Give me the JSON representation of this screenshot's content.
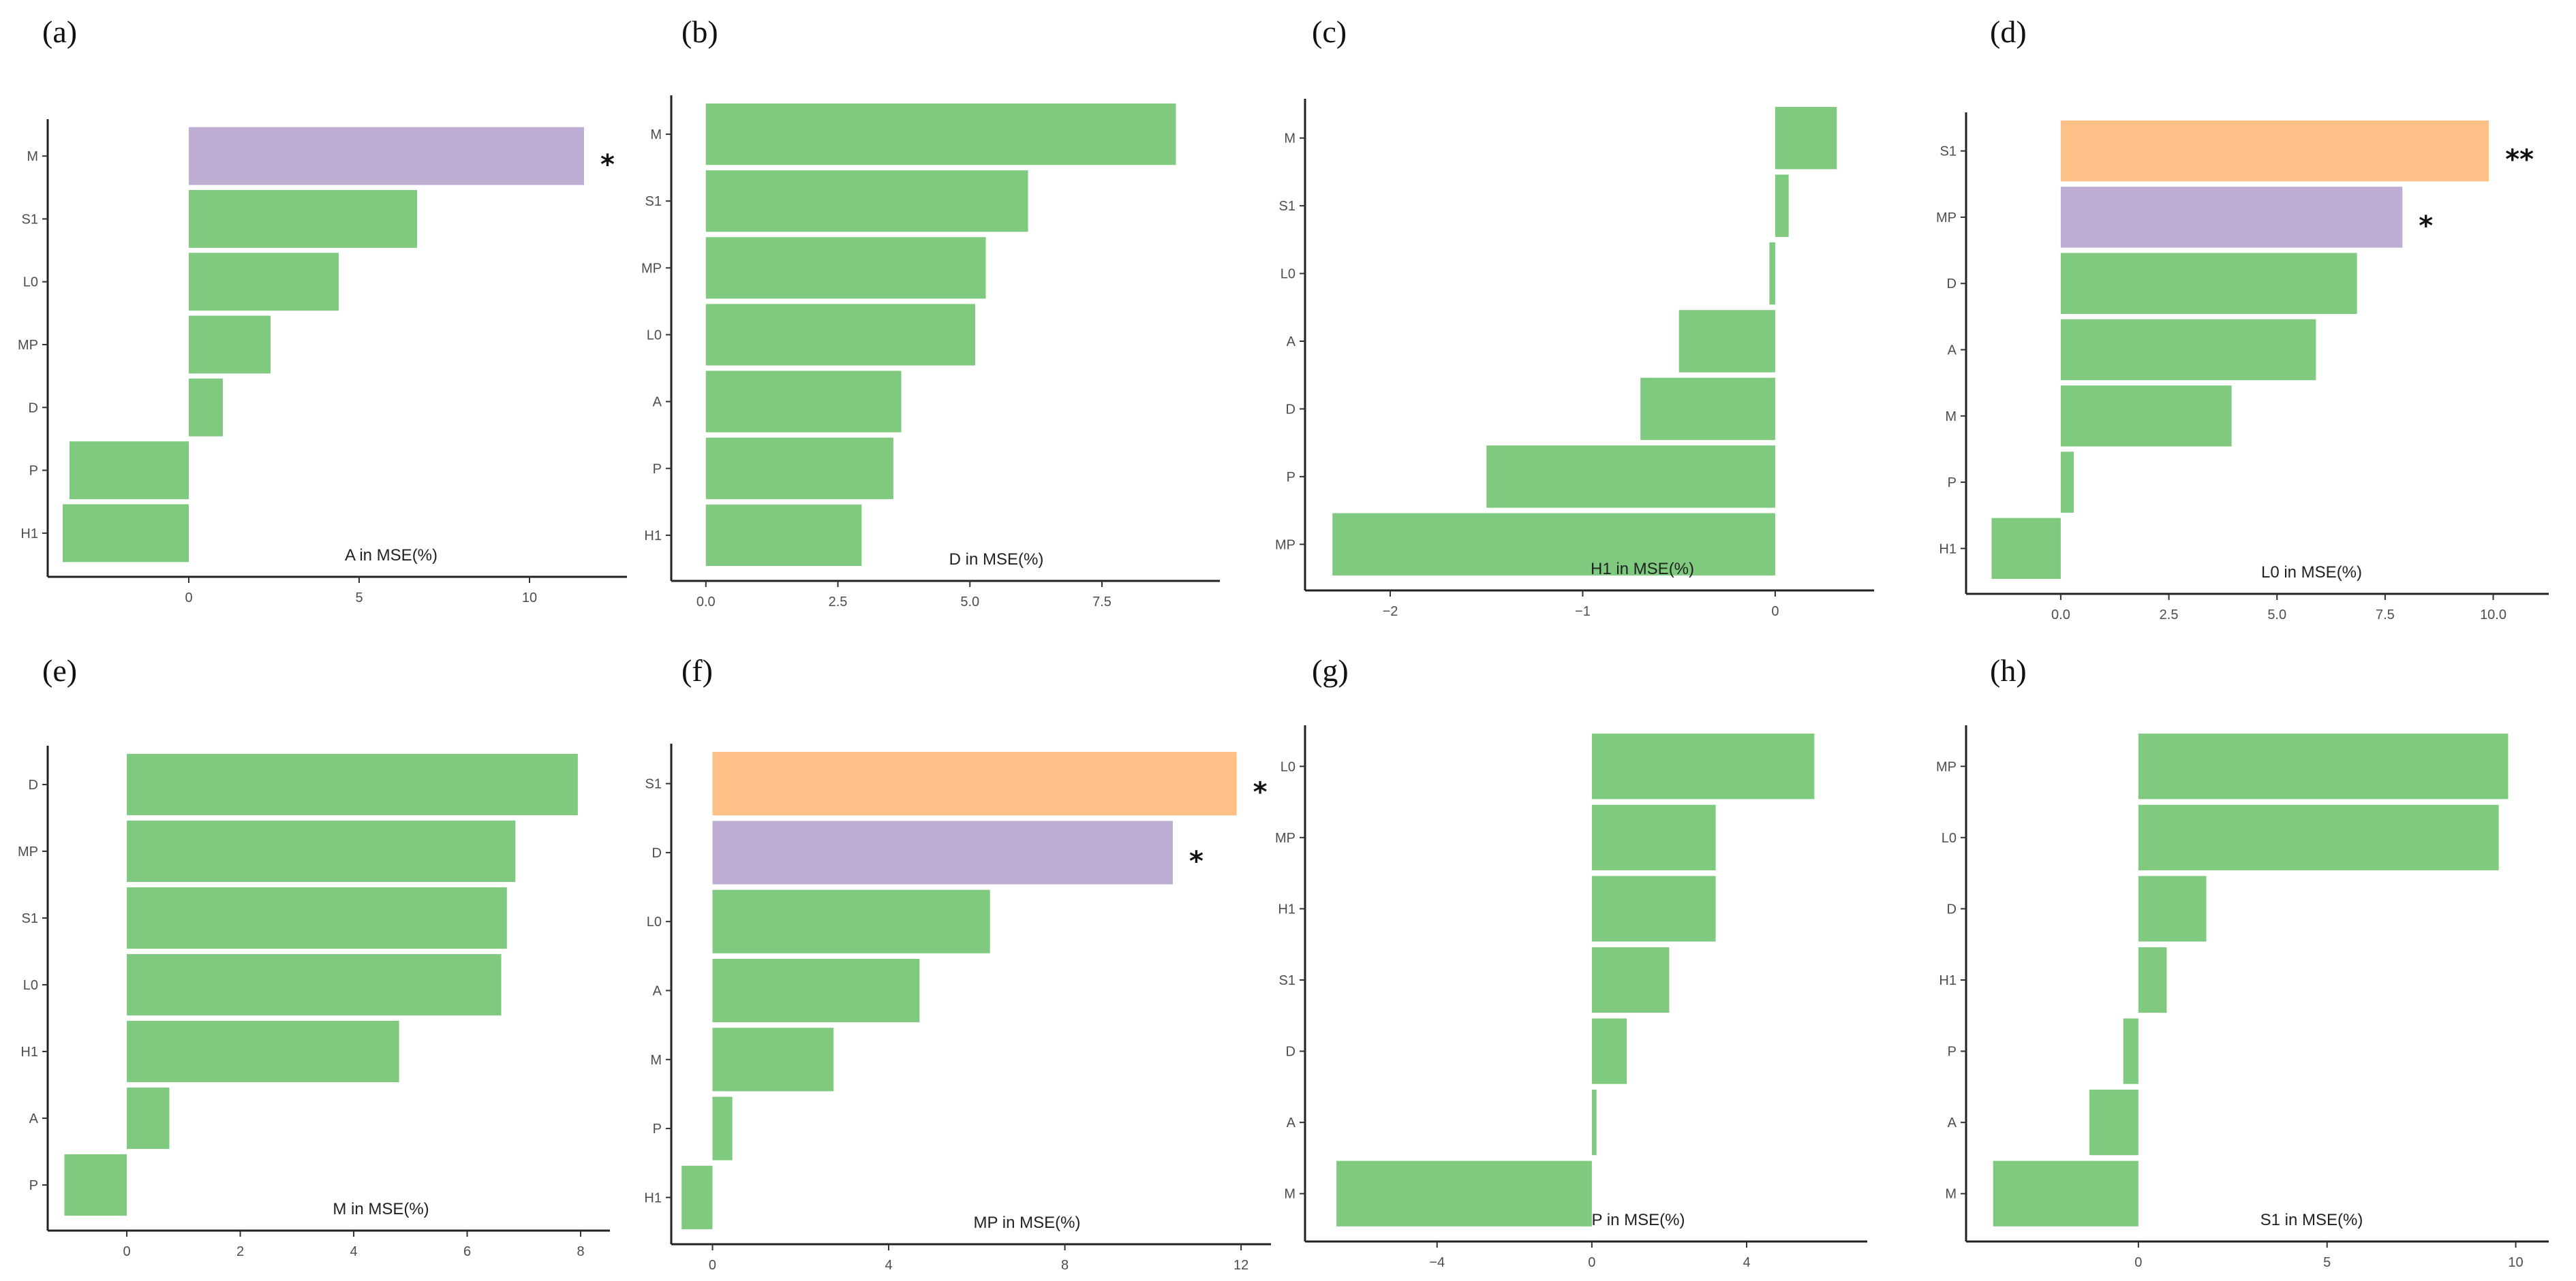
{
  "colors": {
    "default": "#7fca7f",
    "highlight_orange": "#fdc086",
    "highlight_purple": "#beaed4"
  },
  "chart_data": [
    {
      "panel": "(a)",
      "type": "bar",
      "orientation": "horizontal",
      "xlabel": "A in MSE(%)",
      "categories": [
        "M",
        "S1",
        "L0",
        "MP",
        "D",
        "P",
        "H1"
      ],
      "values": [
        11.6,
        6.7,
        4.4,
        2.4,
        1.0,
        -3.5,
        -3.7
      ],
      "bar_colors": [
        "purple",
        "green",
        "green",
        "green",
        "green",
        "green",
        "green"
      ],
      "annotations": [
        "*",
        "",
        "",
        "",
        "",
        "",
        ""
      ],
      "xticks": [
        0,
        5,
        10
      ],
      "xlim": [
        -3.9,
        12.5
      ]
    },
    {
      "panel": "(b)",
      "type": "bar",
      "orientation": "horizontal",
      "xlabel": "D in MSE(%)",
      "categories": [
        "M",
        "S1",
        "MP",
        "L0",
        "A",
        "P",
        "H1"
      ],
      "values": [
        8.9,
        6.1,
        5.3,
        5.1,
        3.7,
        3.55,
        2.95
      ],
      "bar_colors": [
        "green",
        "green",
        "green",
        "green",
        "green",
        "green",
        "green"
      ],
      "annotations": [
        "",
        "",
        "",
        "",
        "",
        "",
        ""
      ],
      "xticks": [
        0.0,
        2.5,
        5.0,
        7.5
      ],
      "xticklabels": [
        "0.0",
        "2.5",
        "5.0",
        "7.5"
      ],
      "xlim": [
        -0.5,
        9.5
      ]
    },
    {
      "panel": "(c)",
      "type": "bar",
      "orientation": "horizontal",
      "xlabel": "H1 in MSE(%)",
      "categories": [
        "M",
        "S1",
        "L0",
        "A",
        "D",
        "P",
        "MP"
      ],
      "values": [
        0.32,
        0.07,
        -0.03,
        -0.5,
        -0.7,
        -1.5,
        -2.3
      ],
      "bar_colors": [
        "green",
        "green",
        "green",
        "green",
        "green",
        "green",
        "green"
      ],
      "annotations": [
        "",
        "",
        "",
        "",
        "",
        "",
        ""
      ],
      "xticks": [
        -2,
        -1,
        0
      ],
      "xticklabels": [
        "−2",
        "−1",
        "0"
      ],
      "xlim": [
        -2.4,
        0.45
      ]
    },
    {
      "panel": "(d)",
      "type": "bar",
      "orientation": "horizontal",
      "xlabel": "L0 in MSE(%)",
      "categories": [
        "S1",
        "MP",
        "D",
        "A",
        "M",
        "P",
        "H1"
      ],
      "values": [
        9.9,
        7.9,
        6.85,
        5.9,
        3.95,
        0.3,
        -1.6
      ],
      "bar_colors": [
        "orange",
        "purple",
        "green",
        "green",
        "green",
        "green",
        "green"
      ],
      "annotations": [
        "**",
        "*",
        "",
        "",
        "",
        "",
        ""
      ],
      "xticks": [
        0.0,
        2.5,
        5.0,
        7.5,
        10.0
      ],
      "xticklabels": [
        "0.0",
        "2.5",
        "5.0",
        "7.5",
        "10.0"
      ],
      "xlim": [
        -2.0,
        11.0
      ]
    },
    {
      "panel": "(e)",
      "type": "bar",
      "orientation": "horizontal",
      "xlabel": "M in MSE(%)",
      "categories": [
        "D",
        "MP",
        "S1",
        "L0",
        "H1",
        "A",
        "P"
      ],
      "values": [
        7.95,
        6.85,
        6.7,
        6.6,
        4.8,
        0.75,
        -1.1
      ],
      "bar_colors": [
        "green",
        "green",
        "green",
        "green",
        "green",
        "green",
        "green"
      ],
      "annotations": [
        "",
        "",
        "",
        "",
        "",
        "",
        ""
      ],
      "xticks": [
        0,
        2,
        4,
        6,
        8
      ],
      "xlim": [
        -1.25,
        8.3
      ]
    },
    {
      "panel": "(f)",
      "type": "bar",
      "orientation": "horizontal",
      "xlabel": "MP in MSE(%)",
      "categories": [
        "S1",
        "D",
        "L0",
        "A",
        "M",
        "P",
        "H1"
      ],
      "values": [
        11.9,
        10.45,
        6.3,
        4.7,
        2.75,
        0.45,
        -0.7
      ],
      "bar_colors": [
        "orange",
        "purple",
        "green",
        "green",
        "green",
        "green",
        "green"
      ],
      "annotations": [
        "*",
        "*",
        "",
        "",
        "",
        "",
        ""
      ],
      "xticks": [
        0,
        4,
        8,
        12
      ],
      "xlim": [
        -0.75,
        12.4
      ]
    },
    {
      "panel": "(g)",
      "type": "bar",
      "orientation": "horizontal",
      "xlabel": "P in MSE(%)",
      "categories": [
        "L0",
        "MP",
        "H1",
        "S1",
        "D",
        "A",
        "M"
      ],
      "values": [
        5.75,
        3.2,
        3.2,
        2.0,
        0.9,
        0.12,
        -6.6
      ],
      "bar_colors": [
        "green",
        "green",
        "green",
        "green",
        "green",
        "green",
        "green"
      ],
      "annotations": [
        "",
        "",
        "",
        "",
        "",
        "",
        ""
      ],
      "xticks": [
        -4,
        0,
        4
      ],
      "xticklabels": [
        "−4",
        "0",
        "4"
      ],
      "xlim": [
        -7.2,
        6.8
      ]
    },
    {
      "panel": "(h)",
      "type": "bar",
      "orientation": "horizontal",
      "xlabel": "S1 in MSE(%)",
      "categories": [
        "MP",
        "L0",
        "D",
        "H1",
        "P",
        "A",
        "M"
      ],
      "values": [
        9.8,
        9.55,
        1.8,
        0.75,
        -0.4,
        -1.3,
        -3.85
      ],
      "bar_colors": [
        "green",
        "green",
        "green",
        "green",
        "green",
        "green",
        "green"
      ],
      "annotations": [
        "",
        "",
        "",
        "",
        "",
        "",
        ""
      ],
      "xticks": [
        0,
        5,
        10
      ],
      "xlim": [
        -4.35,
        10.55
      ]
    }
  ]
}
